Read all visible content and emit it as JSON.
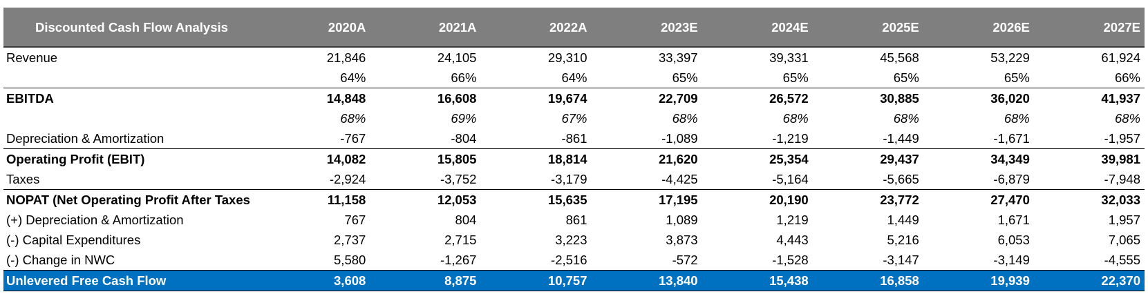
{
  "table": {
    "title": "Discounted Cash Flow Analysis",
    "years": [
      "2020A",
      "2021A",
      "2022A",
      "2023E",
      "2024E",
      "2025E",
      "2026E",
      "2027E"
    ],
    "rows": [
      {
        "label": "Revenue",
        "values": [
          "21,846",
          "24,105",
          "29,310",
          "33,397",
          "39,331",
          "45,568",
          "53,229",
          "61,924"
        ]
      },
      {
        "label": "",
        "values": [
          "64%",
          "66%",
          "64%",
          "65%",
          "65%",
          "65%",
          "65%",
          "66%"
        ]
      },
      {
        "label": "EBITDA",
        "values": [
          "14,848",
          "16,608",
          "19,674",
          "22,709",
          "26,572",
          "30,885",
          "36,020",
          "41,937"
        ]
      },
      {
        "label": "",
        "values": [
          "68%",
          "69%",
          "67%",
          "68%",
          "68%",
          "68%",
          "68%",
          "68%"
        ]
      },
      {
        "label": "Depreciation & Amortization",
        "values": [
          "-767",
          "-804",
          "-861",
          "-1,089",
          "-1,219",
          "-1,449",
          "-1,671",
          "-1,957"
        ]
      },
      {
        "label": "Operating Profit (EBIT)",
        "values": [
          "14,082",
          "15,805",
          "18,814",
          "21,620",
          "25,354",
          "29,437",
          "34,349",
          "39,981"
        ]
      },
      {
        "label": "Taxes",
        "values": [
          "-2,924",
          "-3,752",
          "-3,179",
          "-4,425",
          "-5,164",
          "-5,665",
          "-6,879",
          "-7,948"
        ]
      },
      {
        "label": "NOPAT (Net Operating Profit After Taxes",
        "values": [
          "11,158",
          "12,053",
          "15,635",
          "17,195",
          "20,190",
          "23,772",
          "27,470",
          "32,033"
        ]
      },
      {
        "label": "(+) Depreciation & Amortization",
        "values": [
          "767",
          "804",
          "861",
          "1,089",
          "1,219",
          "1,449",
          "1,671",
          "1,957"
        ]
      },
      {
        "label": "(-) Capital Expenditures",
        "values": [
          "2,737",
          "2,715",
          "3,223",
          "3,873",
          "4,443",
          "5,216",
          "6,053",
          "7,065"
        ]
      },
      {
        "label": "(-) Change in NWC",
        "values": [
          "5,580",
          "-1,267",
          "-2,516",
          "-572",
          "-1,528",
          "-3,147",
          "-3,149",
          "-4,555"
        ]
      },
      {
        "label": "Unlevered Free Cash Flow",
        "values": [
          "3,608",
          "8,875",
          "10,757",
          "13,840",
          "15,438",
          "16,858",
          "19,939",
          "22,370"
        ]
      }
    ]
  },
  "colors": {
    "header_bg": "#7f7f7f",
    "header_text": "#ffffff",
    "total_bg": "#0070c0",
    "total_text": "#ffffff"
  }
}
